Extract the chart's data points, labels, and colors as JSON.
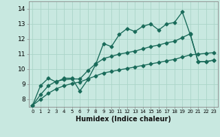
{
  "xlabel": "Humidex (Indice chaleur)",
  "xlim": [
    -0.5,
    23.5
  ],
  "ylim": [
    7.5,
    14.5
  ],
  "yticks": [
    8,
    9,
    10,
    11,
    12,
    13,
    14
  ],
  "xticks": [
    0,
    1,
    2,
    3,
    4,
    5,
    6,
    7,
    8,
    9,
    10,
    11,
    12,
    13,
    14,
    15,
    16,
    17,
    18,
    19,
    20,
    21,
    22,
    23
  ],
  "bg_color": "#c8e8e0",
  "grid_color": "#aad4c8",
  "line_color": "#1a6b5a",
  "line1_x": [
    0,
    1,
    2,
    3,
    4,
    5,
    6,
    7,
    8,
    9,
    10,
    11,
    12,
    13,
    14,
    15,
    16,
    17,
    18,
    19,
    20,
    21,
    22,
    23
  ],
  "line1_y": [
    7.6,
    8.9,
    9.4,
    9.15,
    9.4,
    9.4,
    8.55,
    9.3,
    10.3,
    11.7,
    11.5,
    12.3,
    12.7,
    12.5,
    12.85,
    13.0,
    12.6,
    13.0,
    13.1,
    13.8,
    12.3,
    10.5,
    10.5,
    10.6
  ],
  "line2_x": [
    0,
    1,
    2,
    3,
    4,
    5,
    6,
    7,
    8,
    9,
    10,
    11,
    12,
    13,
    14,
    15,
    16,
    17,
    18,
    19,
    20,
    21,
    22,
    23
  ],
  "line2_y": [
    7.6,
    8.3,
    8.9,
    9.2,
    9.3,
    9.35,
    9.35,
    9.9,
    10.35,
    10.7,
    10.85,
    11.0,
    11.1,
    11.2,
    11.35,
    11.5,
    11.6,
    11.75,
    11.85,
    12.1,
    12.35,
    10.5,
    10.5,
    10.6
  ],
  "line3_x": [
    0,
    1,
    2,
    3,
    4,
    5,
    6,
    7,
    8,
    9,
    10,
    11,
    12,
    13,
    14,
    15,
    16,
    17,
    18,
    19,
    20,
    21,
    22,
    23
  ],
  "line3_y": [
    7.6,
    8.0,
    8.4,
    8.7,
    8.9,
    9.05,
    9.15,
    9.35,
    9.55,
    9.75,
    9.85,
    9.95,
    10.05,
    10.15,
    10.25,
    10.35,
    10.45,
    10.55,
    10.65,
    10.8,
    10.95,
    11.0,
    11.05,
    11.1
  ],
  "marker": "D",
  "markersize": 2.5,
  "linewidth": 1.0
}
